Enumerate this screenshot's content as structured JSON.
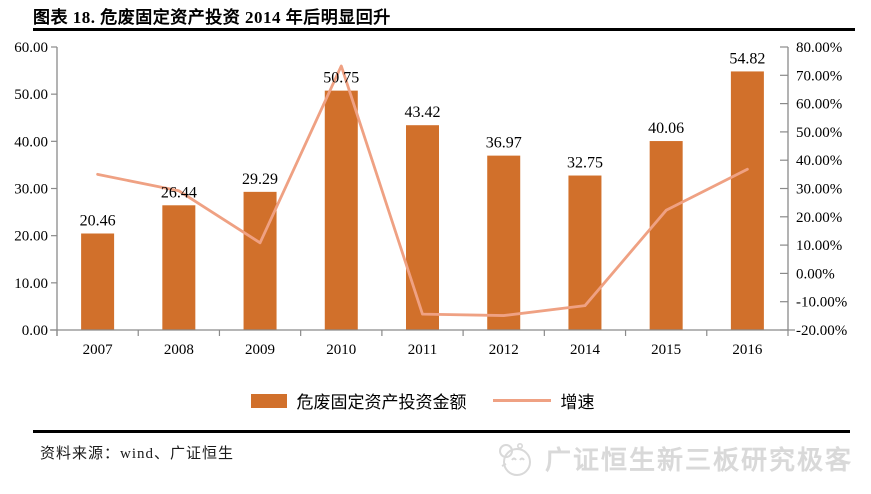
{
  "page": {
    "title": "图表 18. 危废固定资产投资 2014 年后明显回升",
    "source_note": "资料来源：wind、广证恒生",
    "watermark_text": "广证恒生新三板研究极客"
  },
  "colors": {
    "bar": "#D1702B",
    "line": "#EFA183",
    "axis": "#8a8a8a",
    "text": "#000000",
    "rule": "#000000",
    "watermark": "#d9d9d9"
  },
  "legend": {
    "bar_label": "危废固定资产投资金额",
    "line_label": "增速"
  },
  "chart_data": {
    "type": "combo-bar-line",
    "categories": [
      "2007",
      "2008",
      "2009",
      "2010",
      "2011",
      "2012",
      "2014",
      "2015",
      "2016"
    ],
    "series": [
      {
        "name": "危废固定资产投资金额",
        "type": "bar",
        "axis": "left",
        "values": [
          20.46,
          26.44,
          29.29,
          50.75,
          43.42,
          36.97,
          32.75,
          40.06,
          54.82
        ],
        "data_labels": [
          "20.46",
          "26.44",
          "29.29",
          "50.75",
          "43.42",
          "36.97",
          "32.75",
          "40.06",
          "54.82"
        ]
      },
      {
        "name": "增速",
        "type": "line",
        "axis": "right",
        "unit": "%",
        "values": [
          35.0,
          29.2,
          10.8,
          73.3,
          -14.4,
          -14.9,
          -11.4,
          22.3,
          36.8
        ]
      }
    ],
    "left_axis": {
      "min": 0,
      "max": 60,
      "step": 10,
      "tick_labels": [
        "0.00",
        "10.00",
        "20.00",
        "30.00",
        "40.00",
        "50.00",
        "60.00"
      ]
    },
    "right_axis": {
      "min": -20,
      "max": 80,
      "step": 10,
      "tick_labels": [
        "-20.00%",
        "-10.00%",
        "0.00%",
        "10.00%",
        "20.00%",
        "30.00%",
        "40.00%",
        "50.00%",
        "60.00%",
        "70.00%",
        "80.00%"
      ]
    },
    "grid": false,
    "legend_position": "bottom",
    "title": "危废固定资产投资 2014 年后明显回升"
  }
}
